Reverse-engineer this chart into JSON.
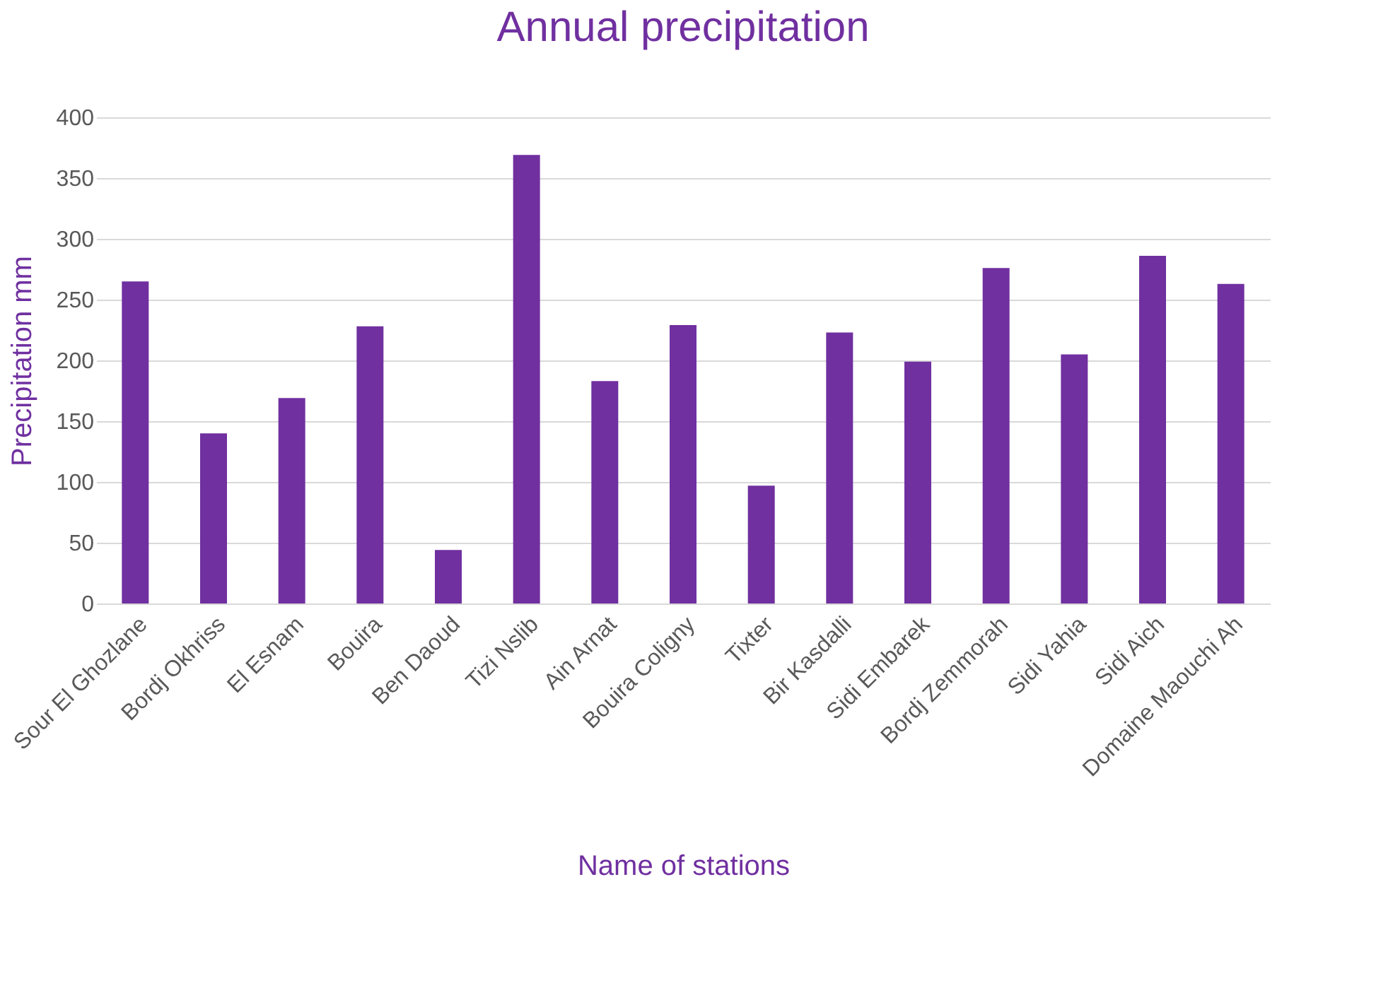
{
  "chart_data": {
    "type": "bar",
    "title": "Annual precipitation",
    "xlabel": "Name of stations",
    "ylabel": "Precipitation mm",
    "categories": [
      "Sour El Ghozlane",
      "Bordj Okhriss",
      "El Esnam",
      "Bouira",
      "Ben Daoud",
      "Tizi Nslib",
      "Ain Arnat",
      "Bouira Coligny",
      "Tixter",
      "Bir Kasdalli",
      "Sidi Embarek",
      "Bordj Zemmorah",
      "Sidi Yahia",
      "Sidi Aich",
      "Domaine Maouchi Ah"
    ],
    "values": [
      265,
      140,
      169,
      228,
      44,
      369,
      183,
      229,
      97,
      223,
      199,
      276,
      205,
      286,
      263
    ],
    "color": "#7030a0",
    "ylim": [
      0,
      400
    ],
    "yticks": [
      0,
      50,
      100,
      150,
      200,
      250,
      300,
      350,
      400
    ],
    "grid": "y"
  }
}
